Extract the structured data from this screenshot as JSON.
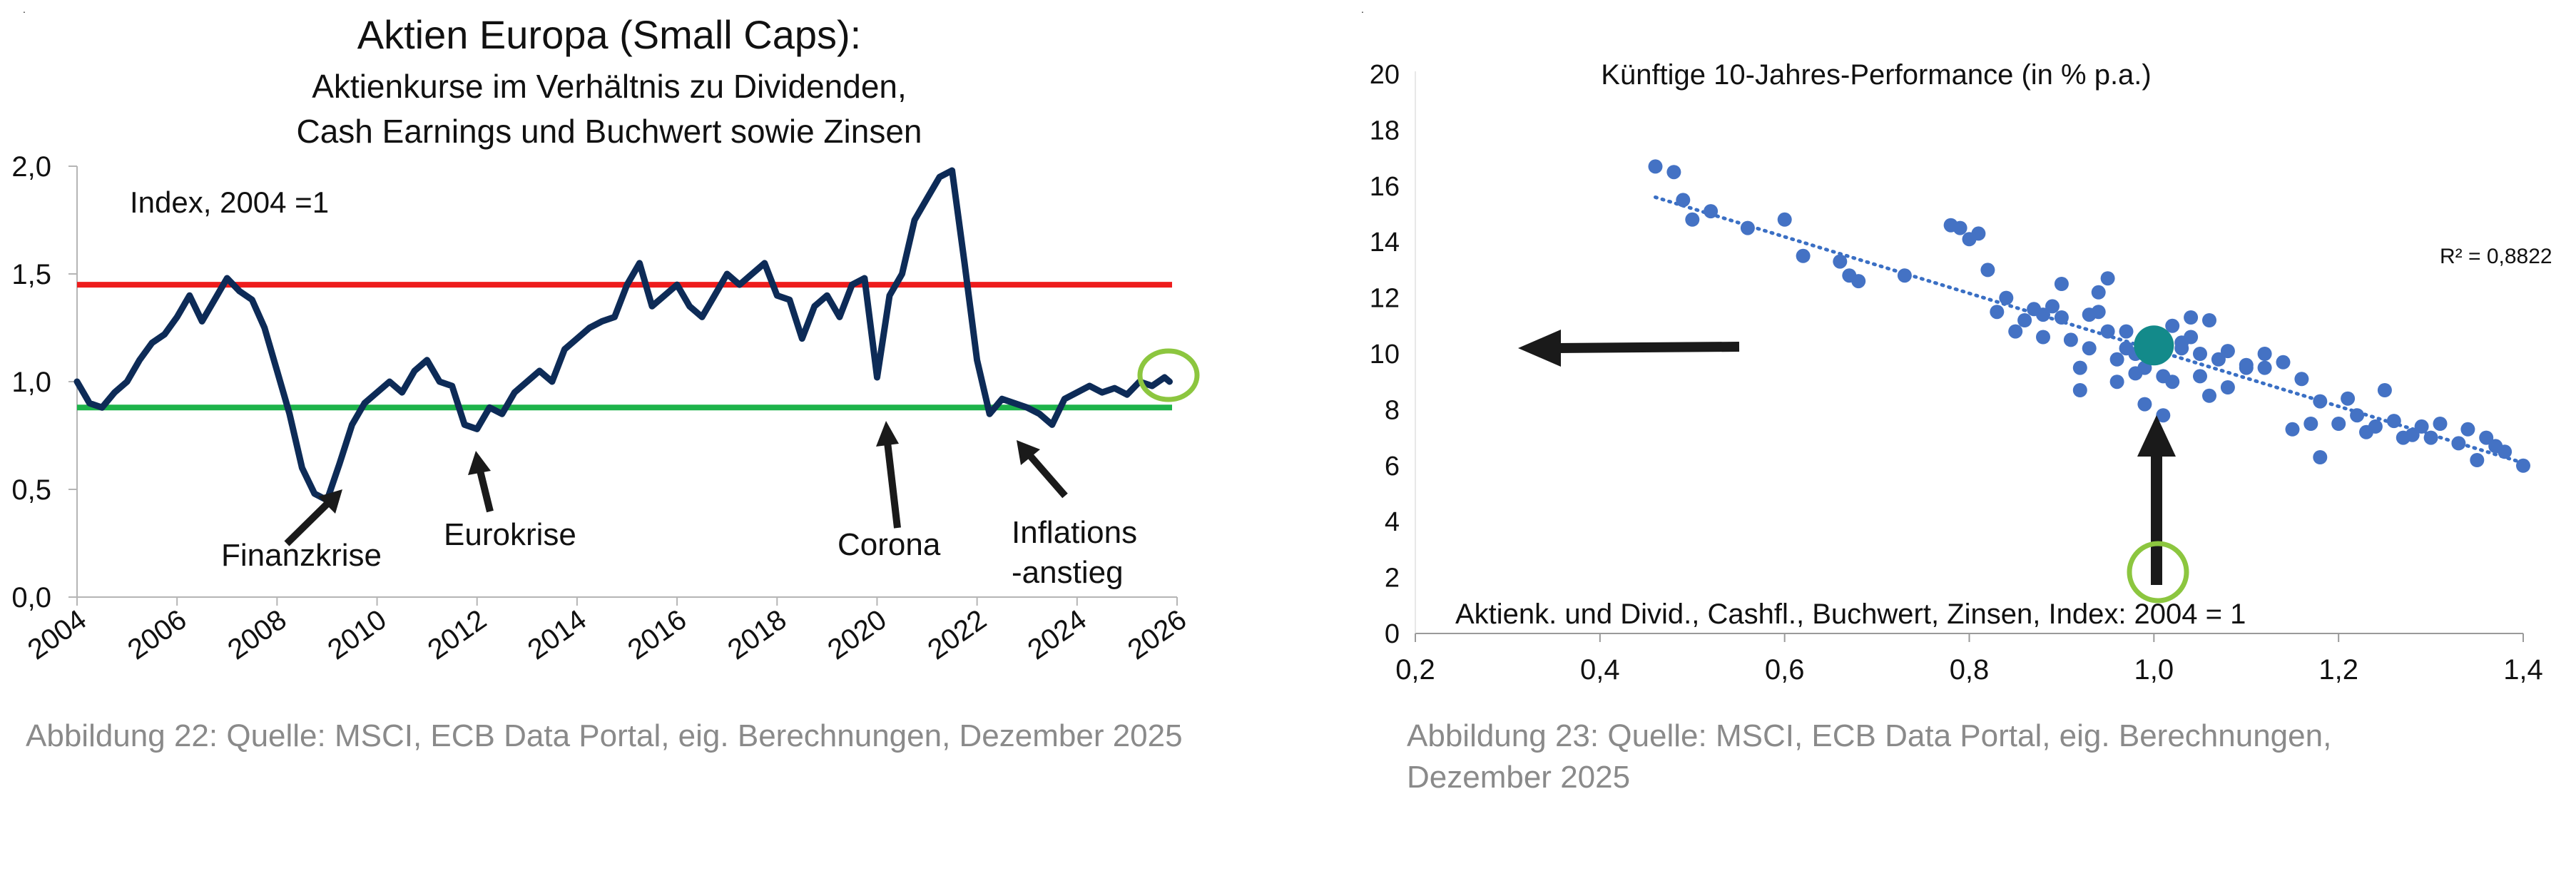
{
  "charts": {
    "left": {
      "title_lines": [
        "Aktien Europa (Small Caps):",
        "Aktienkurse im Verhältnis zu Dividenden,",
        "Cash Earnings und Buchwert sowie Zinsen"
      ],
      "index_label": "Index, 2004 =1",
      "caption": "Abbildung 22: Quelle: MSCI, ECB Data Portal, eig. Berechnungen, Dezember 2025"
    },
    "right": {
      "title": "Künftige 10-Jahres-Performance (in % p.a.)",
      "r2_label": "R² = 0,8822",
      "x_axis_label": "Aktienk. und Divid., Cashfl., Buchwert, Zinsen, Index: 2004 = 1",
      "caption_lines": [
        "Abbildung 23: Quelle: MSCI, ECB Data Portal, eig. Berechnungen,",
        "Dezember 2025"
      ]
    }
  },
  "chart_data": [
    {
      "type": "line",
      "title": "Aktien Europa (Small Caps): Aktienkurse im Verhältnis zu Dividenden, Cash Earnings und Buchwert sowie Zinsen",
      "xlim": [
        2004,
        2026
      ],
      "ylim": [
        0,
        2.0
      ],
      "x_ticks": [
        2004,
        2006,
        2008,
        2010,
        2012,
        2014,
        2016,
        2018,
        2020,
        2022,
        2024,
        2026
      ],
      "x_tick_labels": [
        "2004",
        "2006",
        "2008",
        "2010",
        "2012",
        "2014",
        "2016",
        "2018",
        "2020",
        "2022",
        "2024",
        "2026"
      ],
      "y_ticks": [
        0,
        0.5,
        1.0,
        1.5,
        2.0
      ],
      "y_tick_labels": [
        "0,0",
        "0,5",
        "1,0",
        "1,5",
        "2,0"
      ],
      "series": [
        {
          "name": "Index",
          "color": "#0d2b57",
          "x": [
            2004.0,
            2004.25,
            2004.5,
            2004.75,
            2005.0,
            2005.25,
            2005.5,
            2005.75,
            2006.0,
            2006.25,
            2006.5,
            2006.75,
            2007.0,
            2007.25,
            2007.5,
            2007.75,
            2008.0,
            2008.25,
            2008.5,
            2008.75,
            2009.0,
            2009.25,
            2009.5,
            2009.75,
            2010.0,
            2010.25,
            2010.5,
            2010.75,
            2011.0,
            2011.25,
            2011.5,
            2011.75,
            2012.0,
            2012.25,
            2012.5,
            2012.75,
            2013.0,
            2013.25,
            2013.5,
            2013.75,
            2014.0,
            2014.25,
            2014.5,
            2014.75,
            2015.0,
            2015.25,
            2015.5,
            2015.75,
            2016.0,
            2016.25,
            2016.5,
            2016.75,
            2017.0,
            2017.25,
            2017.5,
            2017.75,
            2018.0,
            2018.25,
            2018.5,
            2018.75,
            2019.0,
            2019.25,
            2019.5,
            2019.75,
            2020.0,
            2020.25,
            2020.5,
            2020.75,
            2021.0,
            2021.25,
            2021.5,
            2021.75,
            2022.0,
            2022.25,
            2022.5,
            2022.75,
            2023.0,
            2023.25,
            2023.5,
            2023.75,
            2024.0,
            2024.25,
            2024.5,
            2024.75,
            2025.0,
            2025.25,
            2025.5,
            2025.75,
            2025.85
          ],
          "values": [
            1.0,
            0.9,
            0.88,
            0.95,
            1.0,
            1.1,
            1.18,
            1.22,
            1.3,
            1.4,
            1.28,
            1.38,
            1.48,
            1.42,
            1.38,
            1.25,
            1.05,
            0.85,
            0.6,
            0.48,
            0.45,
            0.62,
            0.8,
            0.9,
            0.95,
            1.0,
            0.95,
            1.05,
            1.1,
            1.0,
            0.98,
            0.8,
            0.78,
            0.88,
            0.85,
            0.95,
            1.0,
            1.05,
            1.0,
            1.15,
            1.2,
            1.25,
            1.28,
            1.3,
            1.45,
            1.55,
            1.35,
            1.4,
            1.45,
            1.35,
            1.3,
            1.4,
            1.5,
            1.45,
            1.5,
            1.55,
            1.4,
            1.38,
            1.2,
            1.35,
            1.4,
            1.3,
            1.45,
            1.48,
            1.02,
            1.4,
            1.5,
            1.75,
            1.85,
            1.95,
            1.98,
            1.55,
            1.1,
            0.85,
            0.92,
            0.9,
            0.88,
            0.85,
            0.8,
            0.92,
            0.95,
            0.98,
            0.95,
            0.97,
            0.94,
            1.0,
            0.98,
            1.02,
            1.0
          ]
        }
      ],
      "reference_lines": [
        {
          "name": "upper",
          "y": 1.45,
          "color": "#ee1c1c"
        },
        {
          "name": "lower",
          "y": 0.88,
          "color": "#1db34a"
        }
      ],
      "annotations": [
        {
          "label": "Finanzkrise",
          "x": 2008.8
        },
        {
          "label": "Eurokrise",
          "x": 2011.8
        },
        {
          "label": "Corona",
          "x": 2020.4
        },
        {
          "label": "Inflations",
          "x": 2022.6
        },
        {
          "label": "-anstieg",
          "x": 2022.6
        }
      ]
    },
    {
      "type": "scatter",
      "title": "Künftige 10-Jahres-Performance (in % p.a.)",
      "xlabel": "Aktienk. und Divid., Cashfl., Buchwert, Zinsen, Index: 2004 = 1",
      "xlim": [
        0.2,
        1.4
      ],
      "ylim": [
        0,
        20
      ],
      "x_ticks": [
        0.2,
        0.4,
        0.6,
        0.8,
        1.0,
        1.2,
        1.4
      ],
      "x_tick_labels": [
        "0,2",
        "0,4",
        "0,6",
        "0,8",
        "1,0",
        "1,2",
        "1,4"
      ],
      "y_ticks": [
        0,
        2,
        4,
        6,
        8,
        10,
        12,
        14,
        16,
        18,
        20
      ],
      "y_tick_labels": [
        "0",
        "2",
        "4",
        "6",
        "8",
        "10",
        "12",
        "14",
        "16",
        "18",
        "20"
      ],
      "point_color": "#4472c4",
      "highlight": {
        "x": 1.0,
        "y": 10.3,
        "color": "#138a8a"
      },
      "trendline": {
        "x": [
          0.46,
          1.4
        ],
        "y": [
          15.6,
          6.1
        ],
        "r2": 0.8822
      },
      "points_x": [
        0.46,
        0.48,
        0.49,
        0.5,
        0.52,
        0.56,
        0.6,
        0.62,
        0.66,
        0.67,
        0.68,
        0.73,
        0.78,
        0.79,
        0.8,
        0.81,
        0.82,
        0.83,
        0.84,
        0.86,
        0.87,
        0.88,
        0.89,
        0.9,
        0.91,
        0.92,
        0.93,
        0.94,
        0.95,
        0.96,
        0.97,
        0.98,
        0.99,
        1.0,
        1.01,
        1.02,
        1.03,
        1.04,
        1.05,
        1.06,
        1.07,
        1.08,
        1.1,
        1.12,
        1.14,
        1.16,
        1.18,
        1.2,
        1.22,
        1.24,
        1.26,
        1.28,
        1.3,
        1.33,
        1.36,
        1.38,
        1.4,
        0.9,
        0.95,
        1.0,
        0.93,
        0.97,
        1.02,
        1.05,
        0.88,
        0.92,
        0.96,
        1.03,
        1.08,
        1.15,
        1.21,
        1.25,
        1.27,
        1.31,
        1.35,
        0.99,
        1.01,
        0.94,
        1.06,
        1.12,
        1.18,
        1.23,
        1.29,
        1.34,
        1.37,
        0.85,
        0.98,
        1.04,
        1.1,
        1.17
      ],
      "points_y": [
        16.7,
        16.5,
        15.5,
        14.8,
        15.1,
        14.5,
        14.8,
        13.5,
        13.3,
        12.8,
        12.6,
        12.8,
        14.6,
        14.5,
        14.1,
        14.3,
        13.0,
        11.5,
        12.0,
        11.2,
        11.6,
        11.4,
        11.7,
        12.5,
        10.5,
        9.5,
        10.2,
        11.5,
        10.8,
        9.8,
        10.2,
        10.0,
        9.5,
        10.3,
        9.2,
        11.0,
        10.2,
        10.6,
        9.2,
        8.5,
        9.8,
        8.8,
        9.6,
        10.0,
        9.7,
        9.1,
        8.3,
        7.5,
        7.8,
        7.4,
        7.6,
        7.1,
        7.0,
        6.8,
        7.0,
        6.5,
        6.0,
        11.3,
        12.7,
        10.5,
        11.4,
        10.8,
        9.0,
        10.0,
        10.6,
        8.7,
        9.0,
        10.4,
        10.1,
        7.3,
        8.4,
        8.7,
        7.0,
        7.5,
        6.2,
        8.2,
        7.8,
        12.2,
        11.2,
        9.5,
        6.3,
        7.2,
        7.4,
        7.3,
        6.7,
        10.8,
        9.3,
        11.3,
        9.5,
        7.5
      ]
    }
  ]
}
